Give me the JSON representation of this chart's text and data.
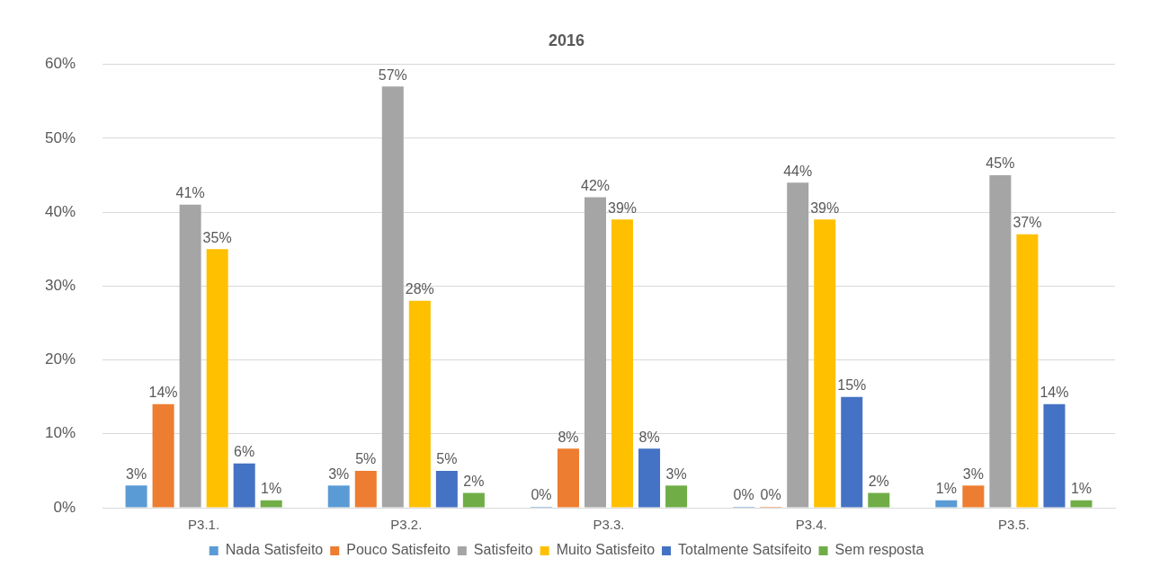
{
  "chart_data": {
    "type": "bar",
    "title": "2016",
    "categories": [
      "P3.1.",
      "P3.2.",
      "P3.3.",
      "P3.4.",
      "P3.5."
    ],
    "series": [
      {
        "name": "Nada Satisfeito",
        "color": "#5b9bd5",
        "values": [
          3,
          3,
          0,
          0,
          1
        ],
        "value_labels": [
          "3%",
          "3%",
          "0%",
          "0%",
          "1%"
        ]
      },
      {
        "name": "Pouco Satisfeito",
        "color": "#ed7d31",
        "values": [
          14,
          5,
          8,
          0,
          3
        ],
        "value_labels": [
          "14%",
          "5%",
          "8%",
          "0%",
          "3%"
        ]
      },
      {
        "name": "Satisfeito",
        "color": "#a5a5a5",
        "values": [
          41,
          57,
          42,
          44,
          45
        ],
        "value_labels": [
          "41%",
          "57%",
          "42%",
          "44%",
          "45%"
        ]
      },
      {
        "name": "Muito Satisfeito",
        "color": "#ffc000",
        "values": [
          35,
          28,
          39,
          39,
          37
        ],
        "value_labels": [
          "35%",
          "28%",
          "39%",
          "39%",
          "37%"
        ]
      },
      {
        "name": "Totalmente Satsifeito",
        "color": "#4472c4",
        "values": [
          6,
          5,
          8,
          15,
          14
        ],
        "value_labels": [
          "6%",
          "5%",
          "8%",
          "15%",
          "14%"
        ]
      },
      {
        "name": "Sem resposta",
        "color": "#70ad47",
        "values": [
          1,
          2,
          3,
          2,
          1
        ],
        "value_labels": [
          "1%",
          "2%",
          "3%",
          "2%",
          "1%"
        ]
      }
    ],
    "ylim": [
      0,
      60
    ],
    "yticks": [
      {
        "value": 0,
        "label": "0%"
      },
      {
        "value": 10,
        "label": "10%"
      },
      {
        "value": 20,
        "label": "20%"
      },
      {
        "value": 30,
        "label": "30%"
      },
      {
        "value": 40,
        "label": "40%"
      },
      {
        "value": 50,
        "label": "50%"
      },
      {
        "value": 60,
        "label": "60%"
      }
    ],
    "grid": "y",
    "legend": "bottom"
  }
}
